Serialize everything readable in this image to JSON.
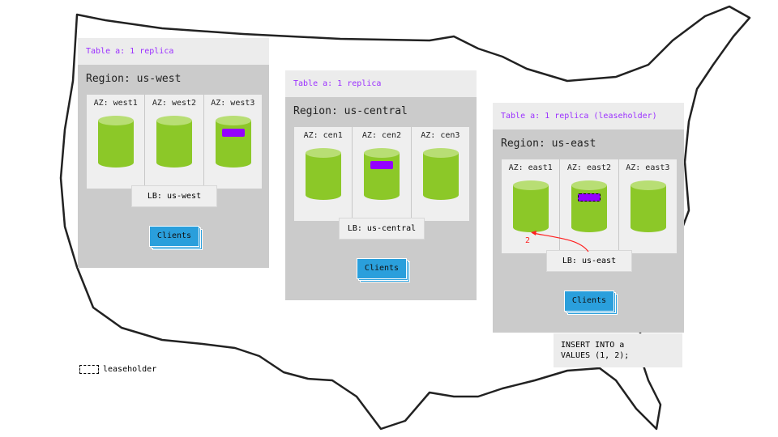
{
  "colors": {
    "replica": "#9400ff",
    "cylinder": "#8cc828",
    "cylinder_top": "#b8de74",
    "clients": "#2a9fdc",
    "arrow": "#ff0000"
  },
  "regions": [
    {
      "header": "Table a: 1 replica",
      "title": "Region: us-west",
      "azs": [
        "AZ: west1",
        "AZ: west2",
        "AZ: west3"
      ],
      "replica_az": 2,
      "leaseholder": false,
      "lb": "LB: us-west",
      "clients": "Clients"
    },
    {
      "header": "Table a: 1 replica",
      "title": "Region: us-central",
      "azs": [
        "AZ: cen1",
        "AZ: cen2",
        "AZ: cen3"
      ],
      "replica_az": 1,
      "leaseholder": false,
      "lb": "LB: us-central",
      "clients": "Clients"
    },
    {
      "header": "Table a: 1 replica (leaseholder)",
      "title": "Region: us-east",
      "azs": [
        "AZ: east1",
        "AZ: east2",
        "AZ: east3"
      ],
      "replica_az": 1,
      "leaseholder": true,
      "lb": "LB: us-east",
      "clients": "Clients"
    }
  ],
  "arrow_label": "2",
  "query": "INSERT INTO a\nVALUES (1, 2);",
  "legend": "leaseholder"
}
